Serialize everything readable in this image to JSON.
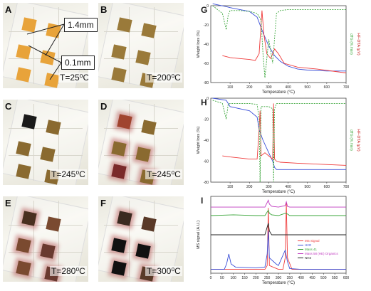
{
  "panels": [
    {
      "letter": "A",
      "temp": "T=25⁰C"
    },
    {
      "letter": "B",
      "temp": "T=200⁰C"
    },
    {
      "letter": "C",
      "temp": "T=245⁰C"
    },
    {
      "letter": "D",
      "temp": "T=245⁰C"
    },
    {
      "letter": "E",
      "temp": "T=280⁰C"
    },
    {
      "letter": "F",
      "temp": "T=300⁰C"
    }
  ],
  "callouts": {
    "thickness": "1.4mm",
    "depth": "0.1mm"
  },
  "chart_data": [
    {
      "panel": "G",
      "type": "line",
      "xlabel": "Temperature (°C)",
      "ylabel": "Weight loss (%)",
      "y2label": "dTG (% /min)",
      "y3label": "HF-DTA (µV)",
      "xlim": [
        0,
        700
      ],
      "ylim": [
        -80,
        0
      ],
      "xticks": [
        "100",
        "200",
        "300",
        "400",
        "500",
        "600",
        "700"
      ],
      "yticks": [
        "0",
        "-20",
        "-40",
        "-60",
        "-80"
      ],
      "series": [
        {
          "color": "#3a4fd8",
          "x": [
            10,
            80,
            100,
            150,
            200,
            240,
            270,
            300,
            330,
            360,
            400,
            450,
            500,
            600,
            700
          ],
          "y": [
            2,
            -1,
            -2,
            -4,
            -6,
            -12,
            -28,
            -42,
            -52,
            -58,
            -63,
            -66,
            -67,
            -68,
            -68
          ]
        },
        {
          "color": "#ef3b3b",
          "x": [
            60,
            100,
            150,
            200,
            230,
            250,
            265,
            275,
            290,
            310,
            330,
            350,
            380,
            450,
            550,
            700
          ],
          "y": [
            -52,
            -54,
            -55,
            -56,
            -57,
            -50,
            -5,
            -30,
            -50,
            -55,
            -45,
            -50,
            -60,
            -64,
            -66,
            -70
          ]
        },
        {
          "color": "#3aa53a",
          "x": [
            10,
            60,
            80,
            90,
            100,
            150,
            200,
            240,
            260,
            270,
            280,
            300,
            320,
            340,
            360,
            400,
            500,
            700
          ],
          "y": [
            0,
            -8,
            -25,
            -10,
            -5,
            -5,
            -6,
            -8,
            -15,
            -50,
            -75,
            -35,
            -60,
            -8,
            -5,
            -4,
            -4,
            -4
          ]
        }
      ]
    },
    {
      "panel": "H",
      "type": "line",
      "xlabel": "Temperature (°C)",
      "ylabel": "Weight loss (%)",
      "y2label": "dTG (% /min)",
      "y3label": "HF-DTA (µV)",
      "xlim": [
        0,
        700
      ],
      "ylim": [
        -80,
        0
      ],
      "xticks": [
        "100",
        "200",
        "300",
        "400",
        "500",
        "600",
        "700"
      ],
      "yticks": [
        "0",
        "-20",
        "-40",
        "-60",
        "-80"
      ],
      "series": [
        {
          "color": "#3a4fd8",
          "x": [
            10,
            80,
            100,
            150,
            200,
            240,
            250,
            270,
            300,
            320,
            330,
            340,
            360,
            400,
            500,
            700
          ],
          "y": [
            0,
            -2,
            -8,
            -10,
            -12,
            -18,
            -30,
            -40,
            -52,
            -60,
            -66,
            -68,
            -68,
            -68,
            -68,
            -68
          ]
        },
        {
          "color": "#ef3b3b",
          "x": [
            60,
            100,
            150,
            200,
            240,
            250,
            255,
            260,
            280,
            300,
            320,
            325,
            330,
            340,
            360,
            450,
            700
          ],
          "y": [
            -55,
            -56,
            -57,
            -58,
            -58,
            -30,
            -12,
            -55,
            -52,
            -55,
            -58,
            -5,
            -58,
            -60,
            -61,
            -62,
            -64
          ]
        },
        {
          "color": "#3aa53a",
          "x": [
            10,
            60,
            80,
            90,
            100,
            150,
            200,
            240,
            250,
            255,
            260,
            300,
            320,
            325,
            330,
            340,
            400,
            700
          ],
          "y": [
            -2,
            -5,
            -20,
            -6,
            -5,
            -5,
            -5,
            -6,
            -20,
            -80,
            -8,
            -8,
            -10,
            -80,
            -10,
            -5,
            -5,
            -5
          ]
        }
      ]
    },
    {
      "panel": "I",
      "type": "line",
      "xlabel": "Temperature (°C)",
      "ylabel": "MS signal (A.U.)",
      "xlim": [
        0,
        600
      ],
      "xticks": [
        "0",
        "50",
        "100",
        "150",
        "200",
        "250",
        "300",
        "350",
        "400",
        "450",
        "500",
        "550",
        "600"
      ],
      "legend": [
        "MS Signal",
        "H2O",
        "Mass 41",
        "Mass 58 (HE) Organics",
        "NH3"
      ],
      "series": [
        {
          "name": "MS Signal",
          "color": "#ef3b3b",
          "x": [
            0,
            200,
            240,
            250,
            255,
            260,
            300,
            320,
            330,
            335,
            340,
            360,
            400,
            600
          ],
          "y": [
            0.05,
            0.05,
            0.05,
            0.1,
            0.85,
            0.1,
            0.05,
            0.05,
            0.2,
            0.92,
            0.2,
            0.05,
            0.05,
            0.05
          ]
        },
        {
          "name": "H2O",
          "color": "#3a4fd8",
          "x": [
            0,
            60,
            70,
            80,
            90,
            110,
            200,
            240,
            250,
            255,
            260,
            290,
            300,
            330,
            340,
            350,
            400,
            600
          ],
          "y": [
            0.05,
            0.05,
            0.12,
            0.25,
            0.12,
            0.08,
            0.07,
            0.08,
            0.25,
            0.55,
            0.2,
            0.12,
            0.1,
            0.3,
            0.15,
            0.06,
            0.05,
            0.05
          ]
        },
        {
          "name": "Mass 41",
          "color": "#3aa53a",
          "x": [
            0,
            100,
            200,
            240,
            255,
            260,
            270,
            300,
            330,
            340,
            350,
            400,
            600
          ],
          "y": [
            0.75,
            0.76,
            0.75,
            0.75,
            0.82,
            0.78,
            0.76,
            0.75,
            0.78,
            0.77,
            0.75,
            0.75,
            0.75
          ]
        },
        {
          "name": "Mass 58 (HE) Organics",
          "color": "#c03bc0",
          "x": [
            0,
            100,
            200,
            240,
            255,
            260,
            270,
            300,
            330,
            335,
            340,
            350,
            400,
            600
          ],
          "y": [
            0.86,
            0.86,
            0.86,
            0.86,
            0.95,
            0.9,
            0.87,
            0.86,
            0.88,
            0.93,
            0.87,
            0.86,
            0.86,
            0.86
          ]
        },
        {
          "name": "NH3",
          "color": "#222222",
          "x": [
            0,
            100,
            200,
            240,
            255,
            260,
            270,
            300,
            600
          ],
          "y": [
            0.5,
            0.5,
            0.5,
            0.5,
            0.65,
            0.55,
            0.5,
            0.5,
            0.5
          ]
        }
      ]
    }
  ]
}
